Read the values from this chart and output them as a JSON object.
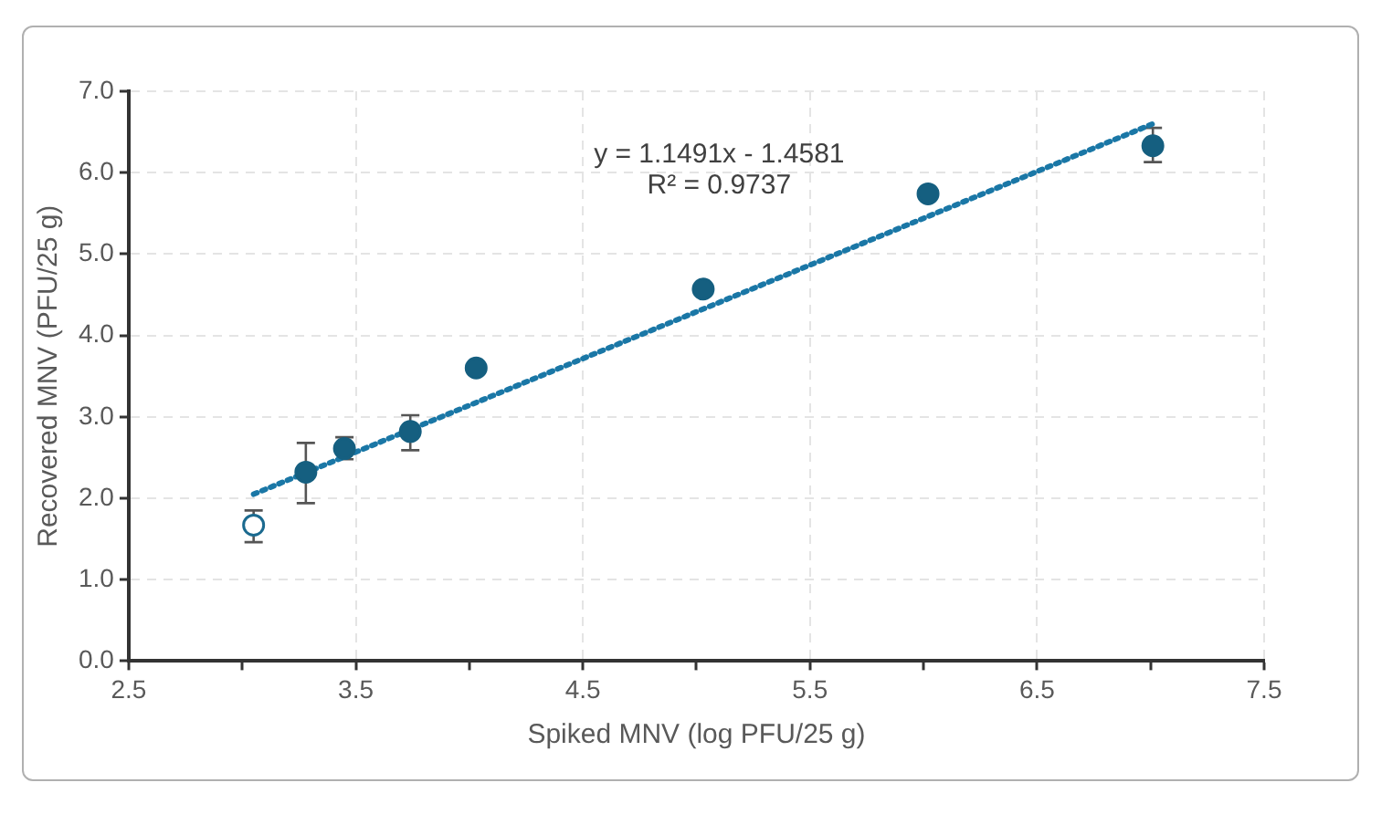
{
  "chart_data": {
    "type": "scatter",
    "xlabel": "Spiked MNV (log PFU/25 g)",
    "ylabel": "Recovered MNV (PFU/25 g)",
    "xlim": [
      2.5,
      7.5
    ],
    "xticks": [
      2.5,
      {
        "value": 3,
        "label": null
      },
      3.5,
      {
        "value": 4,
        "label": null
      },
      4.5,
      {
        "value": 5,
        "label": null
      },
      5.5,
      {
        "value": 6,
        "label": null
      },
      6.5,
      {
        "value": 7,
        "label": null
      },
      7.5
    ],
    "ylim": [
      0,
      7
    ],
    "yticks": [
      {
        "value": 0,
        "label": "0.0"
      },
      {
        "value": 1,
        "label": "1.0"
      },
      {
        "value": 2,
        "label": "2.0"
      },
      {
        "value": 3,
        "label": "3.0"
      },
      {
        "value": 4,
        "label": "4.0"
      },
      {
        "value": 5,
        "label": "5.0"
      },
      {
        "value": 6,
        "label": "6.0"
      },
      {
        "value": 7,
        "label": "7.0"
      }
    ],
    "grid": true,
    "legend": false,
    "series": [
      {
        "type": "scatter",
        "marker": "circle",
        "color": "#1b6a8f",
        "x": [
          3.05
        ],
        "values": [
          1.67
        ],
        "errors": [
          [
            1.46,
            1.85
          ]
        ]
      },
      {
        "type": "scatter",
        "marker": "circle",
        "color": "#155f80",
        "x": [
          3.28,
          3.45,
          3.74,
          4.03,
          5.03,
          6.02,
          7.01
        ],
        "values": [
          2.32,
          2.61,
          2.82,
          3.6,
          4.57,
          5.74,
          6.33
        ],
        "errors": [
          [
            1.94,
            2.68
          ],
          [
            2.48,
            2.75
          ],
          [
            2.59,
            3.02
          ],
          null,
          null,
          null,
          [
            6.13,
            6.55
          ]
        ]
      },
      {
        "type": "line",
        "line_style": "dotted",
        "color": "#1a77a6",
        "x": [
          3.05,
          7.01
        ],
        "values": [
          2.05,
          6.6
        ]
      }
    ],
    "annotations": [
      "y = 1.1491x - 1.4581",
      "R² = 0.9737"
    ]
  }
}
